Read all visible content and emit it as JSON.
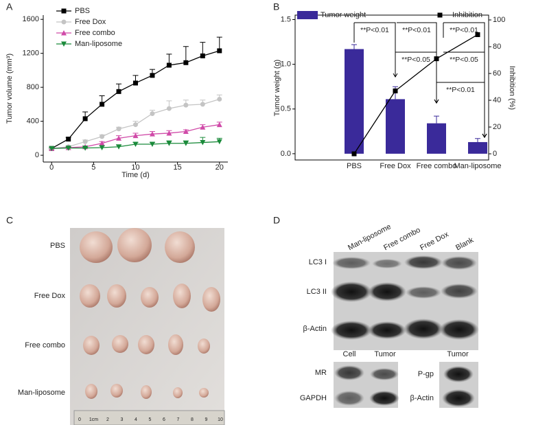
{
  "chart_data": [
    {
      "type": "line",
      "panel_label": "A",
      "xlabel": "Time (d)",
      "ylabel": "Tumor volume (mm³)",
      "x": [
        0,
        2,
        4,
        6,
        8,
        10,
        12,
        14,
        16,
        18,
        20
      ],
      "xlim": [
        -1,
        21
      ],
      "xticks": [
        0,
        5,
        10,
        15,
        20
      ],
      "ylim": [
        -80,
        1650
      ],
      "yticks": [
        0,
        400,
        800,
        1200,
        1600
      ],
      "legend": "upper left",
      "series": [
        {
          "name": "PBS",
          "color": "#000000",
          "marker": "square",
          "values": [
            80,
            190,
            430,
            600,
            750,
            850,
            940,
            1060,
            1090,
            1170,
            1230
          ],
          "errors": [
            0,
            20,
            80,
            100,
            90,
            90,
            70,
            130,
            190,
            160,
            160
          ]
        },
        {
          "name": "Free Dox",
          "color": "#c4c4c4",
          "marker": "circle",
          "values": [
            80,
            100,
            160,
            220,
            310,
            360,
            490,
            550,
            590,
            600,
            660
          ],
          "errors": [
            0,
            10,
            20,
            20,
            20,
            40,
            40,
            90,
            60,
            50,
            50
          ]
        },
        {
          "name": "Free combo",
          "color": "#d04aa8",
          "marker": "triangle-up",
          "values": [
            80,
            90,
            100,
            140,
            200,
            230,
            250,
            260,
            280,
            330,
            360
          ],
          "errors": [
            10,
            10,
            10,
            20,
            30,
            30,
            30,
            30,
            20,
            30,
            30
          ]
        },
        {
          "name": "Man-liposome",
          "color": "#1a8a3a",
          "marker": "triangle-down",
          "values": [
            80,
            85,
            85,
            90,
            100,
            130,
            130,
            140,
            140,
            150,
            160
          ],
          "errors": [
            10,
            10,
            10,
            20,
            20,
            20,
            20,
            30,
            30,
            60,
            40
          ]
        }
      ]
    },
    {
      "type": "bar-line",
      "panel_label": "B",
      "ylabel": "Tumor weight (g)",
      "y2label": "Inhibition (%)",
      "categories": [
        "PBS",
        "Free Dox",
        "Free combo",
        "Man-liposome"
      ],
      "ylim": [
        -0.07,
        1.55
      ],
      "yticks": [
        {
          "value": 0,
          "label": "0.0"
        },
        0.5,
        {
          "value": 1,
          "label": "1.0"
        },
        1.5
      ],
      "y2lim": [
        -4.6,
        103.6
      ],
      "y2ticks": [
        0,
        20,
        40,
        60,
        80,
        100
      ],
      "series": [
        {
          "name": "Tumor weight",
          "type": "bar",
          "color": "#3a2a9a",
          "values": [
            1.17,
            0.61,
            0.34,
            0.13
          ],
          "errors": [
            0.05,
            0.14,
            0.08,
            0.04
          ]
        },
        {
          "name": "Inhibition",
          "type": "line",
          "axis": "y2",
          "color": "#000000",
          "values": [
            0,
            47,
            71,
            89
          ]
        }
      ],
      "annotations": [
        "**P<0.01",
        "**P<0.01",
        "**P<0.01",
        "**P<0.05",
        "**P<0.05",
        "**P<0.01"
      ]
    }
  ],
  "photo_panel": {
    "panel_label": "C",
    "rows": [
      "PBS",
      "Free Dox",
      "Free combo",
      "Man-liposome"
    ],
    "ruler_labels": [
      "0",
      "1cm",
      "2",
      "3",
      "4",
      "5",
      "6",
      "7",
      "8",
      "9",
      "10"
    ]
  },
  "blot_panel": {
    "panel_label": "D",
    "lanes": [
      "Man-liposome",
      "Free combo",
      "Free Dox",
      "Blank"
    ],
    "rows": [
      "LC3 I",
      "LC3 II",
      "β-Actin"
    ],
    "lower_columns": [
      "Cell",
      "Tumor"
    ],
    "lower_rows": [
      "MR",
      "GAPDH"
    ],
    "right_column": "Tumor",
    "right_rows": [
      "P-gp",
      "β-Actin"
    ]
  }
}
